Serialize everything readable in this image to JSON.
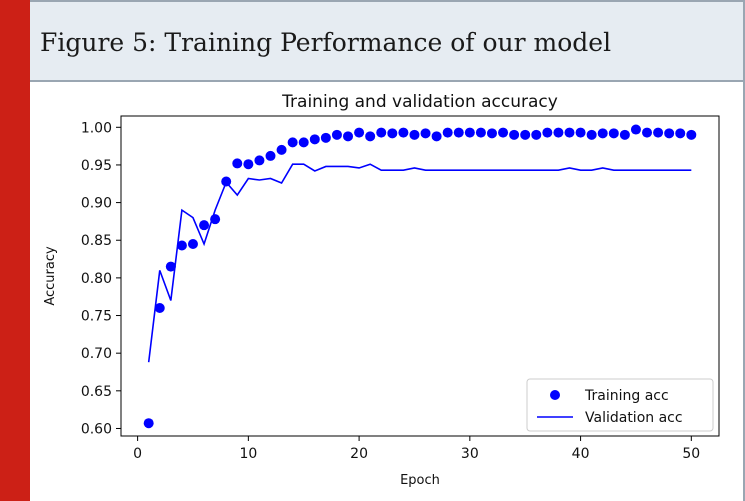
{
  "figure": {
    "caption": "Figure 5: Training Performance of our model"
  },
  "colors": {
    "accent": "#cc2016",
    "header_bg": "#e6ecf2",
    "series": "#0000ff"
  },
  "chart_data": {
    "type": "line",
    "title": "Training and validation accuracy",
    "xlabel": "Epoch",
    "ylabel": "Accuracy",
    "xlim": [
      -1.5,
      52.5
    ],
    "ylim": [
      0.59,
      1.015
    ],
    "xticks": [
      0,
      10,
      20,
      30,
      40,
      50
    ],
    "yticks": [
      0.6,
      0.65,
      0.7,
      0.75,
      0.8,
      0.85,
      0.9,
      0.95,
      1.0
    ],
    "ytick_labels": [
      "0.60",
      "0.65",
      "0.70",
      "0.75",
      "0.80",
      "0.85",
      "0.90",
      "0.95",
      "1.00"
    ],
    "grid": false,
    "legend_position": "lower-right",
    "series": [
      {
        "name": "Training acc",
        "style": "markers",
        "x": [
          1,
          2,
          3,
          4,
          5,
          6,
          7,
          8,
          9,
          10,
          11,
          12,
          13,
          14,
          15,
          16,
          17,
          18,
          19,
          20,
          21,
          22,
          23,
          24,
          25,
          26,
          27,
          28,
          29,
          30,
          31,
          32,
          33,
          34,
          35,
          36,
          37,
          38,
          39,
          40,
          41,
          42,
          43,
          44,
          45,
          46,
          47,
          48,
          49,
          50
        ],
        "values": [
          0.607,
          0.76,
          0.815,
          0.843,
          0.845,
          0.87,
          0.878,
          0.928,
          0.952,
          0.951,
          0.956,
          0.962,
          0.97,
          0.98,
          0.98,
          0.984,
          0.986,
          0.99,
          0.988,
          0.993,
          0.988,
          0.993,
          0.992,
          0.993,
          0.99,
          0.992,
          0.988,
          0.993,
          0.993,
          0.993,
          0.993,
          0.992,
          0.993,
          0.99,
          0.99,
          0.99,
          0.993,
          0.993,
          0.993,
          0.993,
          0.99,
          0.992,
          0.992,
          0.99,
          0.997,
          0.993,
          0.993,
          0.992,
          0.992,
          0.99
        ]
      },
      {
        "name": "Validation acc",
        "style": "line",
        "x": [
          1,
          2,
          3,
          4,
          5,
          6,
          7,
          8,
          9,
          10,
          11,
          12,
          13,
          14,
          15,
          16,
          17,
          18,
          19,
          20,
          21,
          22,
          23,
          24,
          25,
          26,
          27,
          28,
          29,
          30,
          31,
          32,
          33,
          34,
          35,
          36,
          37,
          38,
          39,
          40,
          41,
          42,
          43,
          44,
          45,
          46,
          47,
          48,
          49,
          50
        ],
        "values": [
          0.688,
          0.81,
          0.77,
          0.89,
          0.88,
          0.845,
          0.89,
          0.927,
          0.91,
          0.932,
          0.93,
          0.932,
          0.926,
          0.951,
          0.951,
          0.942,
          0.948,
          0.948,
          0.948,
          0.946,
          0.951,
          0.943,
          0.943,
          0.943,
          0.946,
          0.943,
          0.943,
          0.943,
          0.943,
          0.943,
          0.943,
          0.943,
          0.943,
          0.943,
          0.943,
          0.943,
          0.943,
          0.943,
          0.946,
          0.943,
          0.943,
          0.946,
          0.943,
          0.943,
          0.943,
          0.943,
          0.943,
          0.943,
          0.943,
          0.943
        ]
      }
    ]
  }
}
